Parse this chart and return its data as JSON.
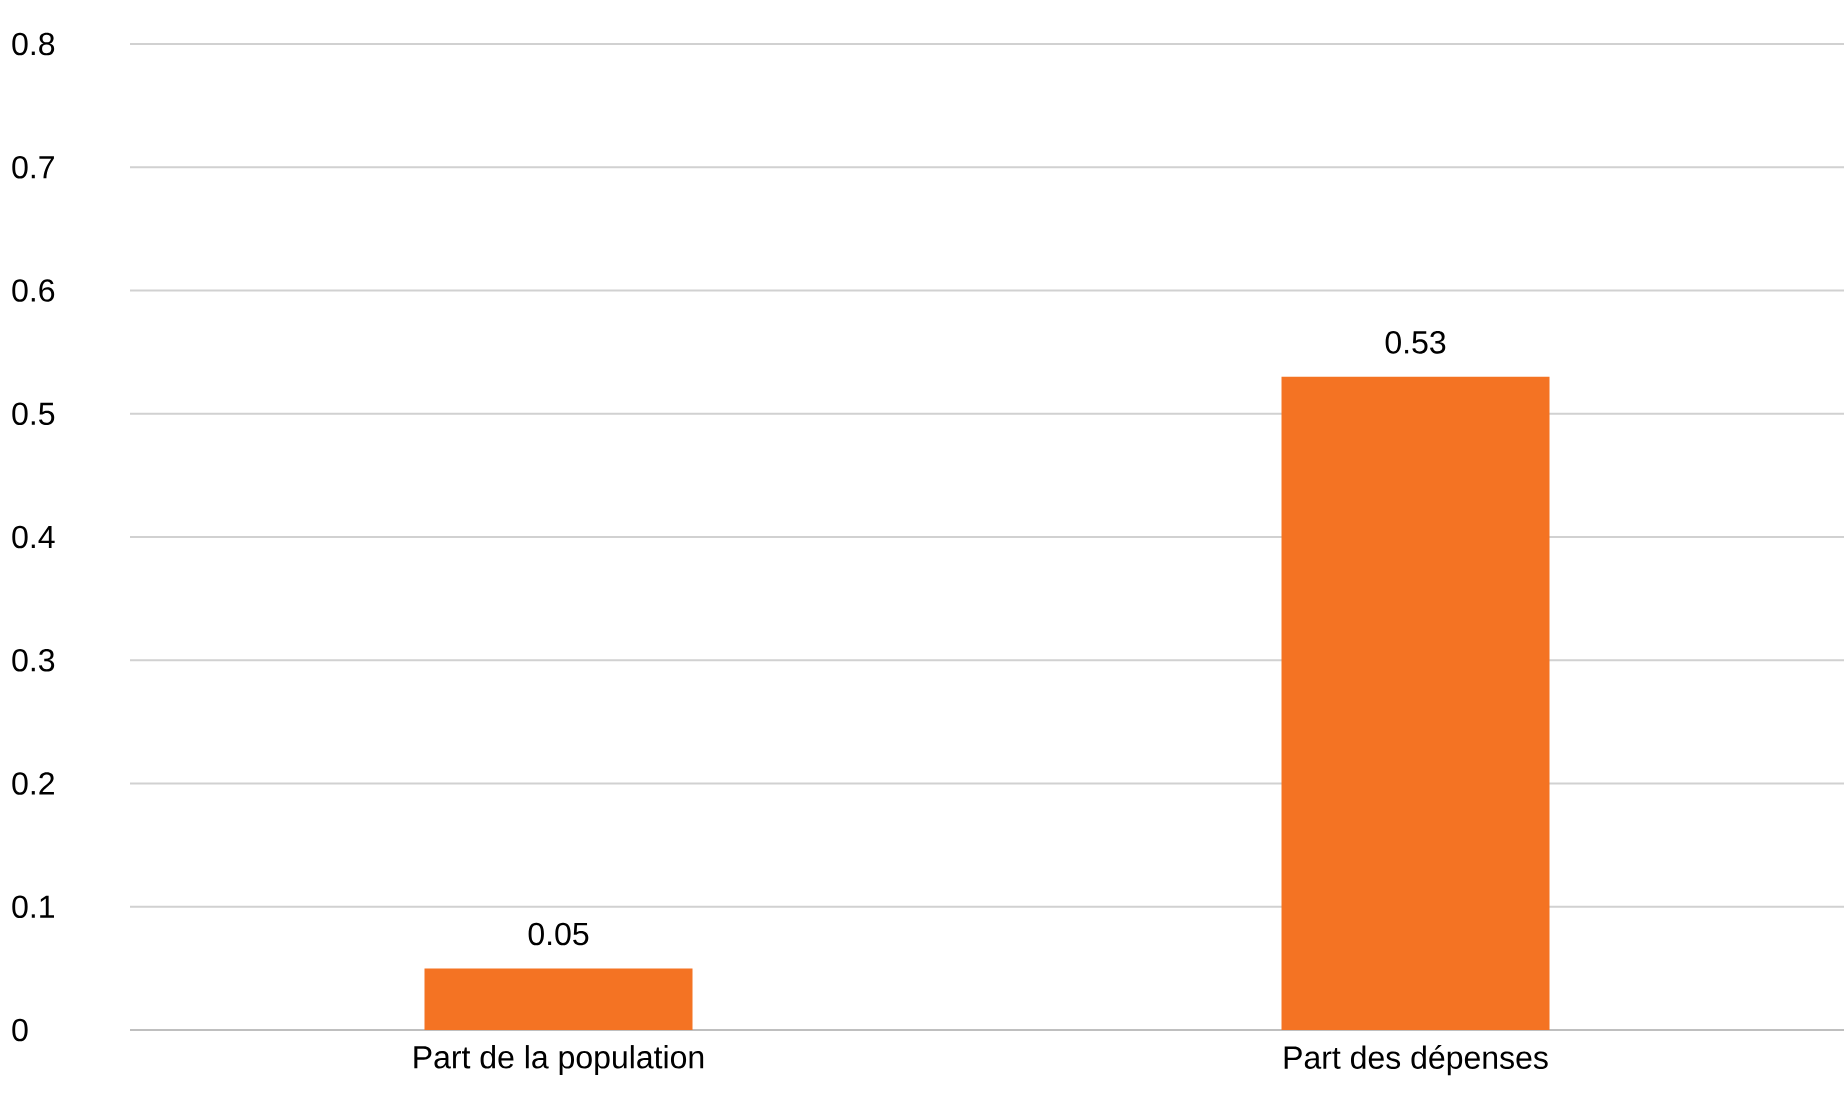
{
  "chart_data": {
    "type": "bar",
    "categories": [
      "Part de la population",
      "Part des dépenses"
    ],
    "values": [
      0.05,
      0.53
    ],
    "color": "#f47323",
    "ylim": [
      0,
      0.8
    ],
    "yticks": [
      0,
      0.1,
      0.2,
      0.3,
      0.4,
      0.5,
      0.6,
      0.7,
      0.8
    ],
    "grid": "y",
    "data_labels": true
  }
}
